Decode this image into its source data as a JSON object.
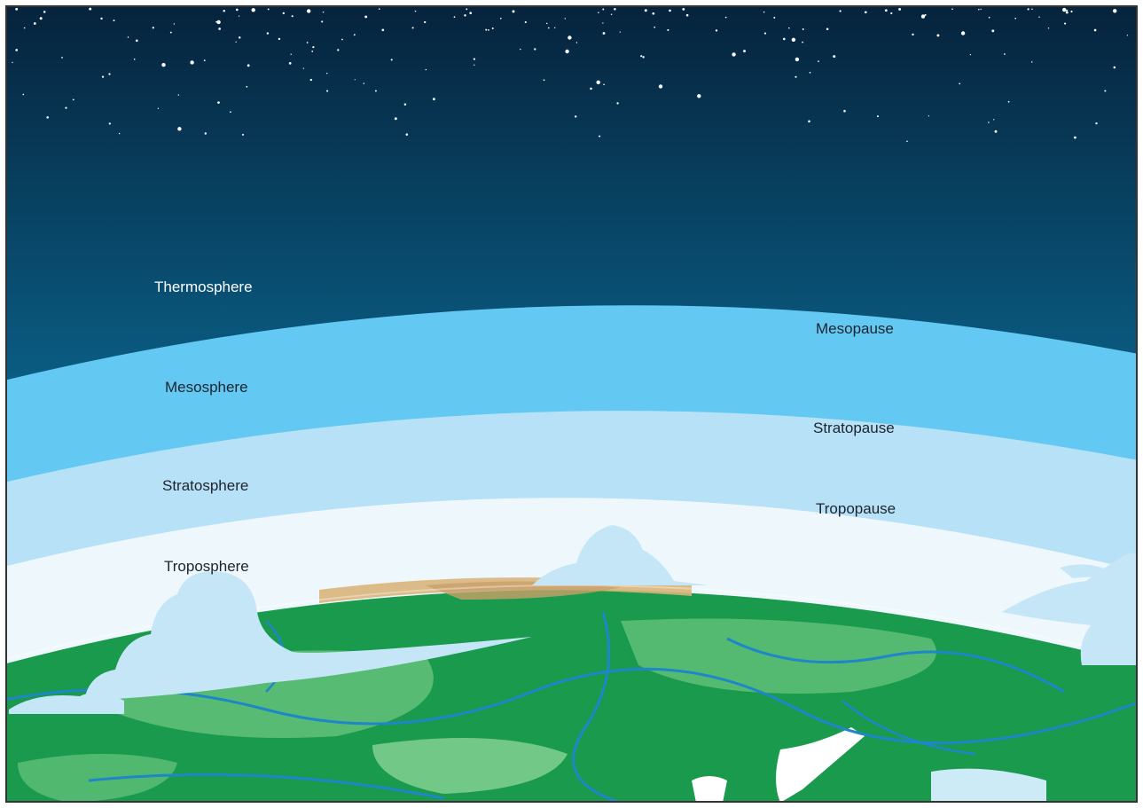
{
  "layers": [
    {
      "id": "thermosphere",
      "label": "Thermosphere",
      "color": "#0d5f86"
    },
    {
      "id": "mesosphere",
      "label": "Mesosphere",
      "color": "#63c9f2"
    },
    {
      "id": "stratosphere",
      "label": "Stratosphere",
      "color": "#b7e1f6"
    },
    {
      "id": "troposphere",
      "label": "Troposphere",
      "color": "#eef7fc"
    }
  ],
  "boundaries": [
    {
      "id": "mesopause",
      "label": "Mesopause"
    },
    {
      "id": "stratopause",
      "label": "Stratopause"
    },
    {
      "id": "tropopause",
      "label": "Tropopause"
    }
  ],
  "colors": {
    "space_top": "#06223b",
    "space_bottom": "#1a8fc0",
    "land_dark": "#1a9a4c",
    "land_light": "#5fbf78",
    "river": "#1f86c9",
    "cloud": "#c5e6f6",
    "frame": "#333333"
  }
}
